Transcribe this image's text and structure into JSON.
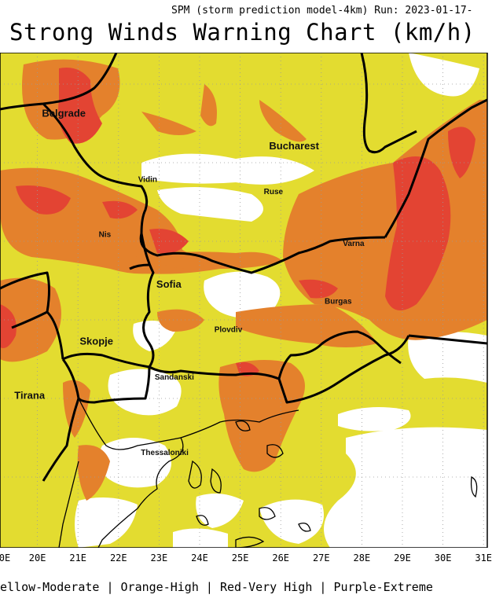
{
  "header": {
    "run_info": "SPM (storm prediction model-4km) Run: 2023-01-17-",
    "title": "Strong Winds Warning Chart (km/h)"
  },
  "legend_text": "ellow-Moderate | Orange-High | Red-Very High | Purple-Extreme",
  "colors": {
    "yellow": "#e3dc30",
    "orange": "#e4812c",
    "red": "#e34433",
    "none": "#ffffff",
    "border": "#000000",
    "grid": "#9a9a9a"
  },
  "x_ticks": [
    "0E",
    "20E",
    "21E",
    "22E",
    "23E",
    "24E",
    "25E",
    "26E",
    "27E",
    "28E",
    "29E",
    "30E",
    "31E"
  ],
  "cities": [
    {
      "name": "Belgrade",
      "lon": 20.5,
      "lat": 44.8
    },
    {
      "name": "Bucharest",
      "lon": 26.1,
      "lat": 44.4
    },
    {
      "name": "Vidin",
      "lon": 22.87,
      "lat": 44.0
    },
    {
      "name": "Ruse",
      "lon": 25.97,
      "lat": 43.85
    },
    {
      "name": "Nis",
      "lon": 21.9,
      "lat": 43.32
    },
    {
      "name": "Varna",
      "lon": 27.92,
      "lat": 43.21
    },
    {
      "name": "Sofia",
      "lon": 23.32,
      "lat": 42.7
    },
    {
      "name": "Burgas",
      "lon": 27.47,
      "lat": 42.5
    },
    {
      "name": "Skopje",
      "lon": 21.43,
      "lat": 42.0
    },
    {
      "name": "Plovdiv",
      "lon": 24.75,
      "lat": 42.15
    },
    {
      "name": "Tirana",
      "lon": 19.82,
      "lat": 41.33
    },
    {
      "name": "Sandanski",
      "lon": 23.28,
      "lat": 41.57
    },
    {
      "name": "Thessaloniki",
      "lon": 22.94,
      "lat": 40.64
    }
  ]
}
